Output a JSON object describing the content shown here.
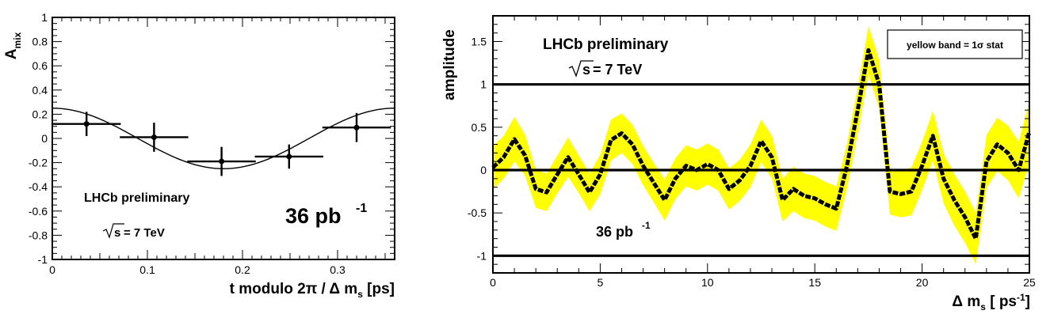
{
  "chart_data": [
    {
      "type": "scatter",
      "title": "",
      "xlabel": "t modulo 2π / Δ m_s [ps]",
      "ylabel": "A_mix",
      "xlim": [
        0,
        0.36
      ],
      "ylim": [
        -1,
        1
      ],
      "x_ticks": [
        0,
        0.1,
        0.2,
        0.3
      ],
      "x_tick_labels": [
        "0",
        "0.1",
        "0.2",
        "0.3"
      ],
      "y_ticks": [
        -1,
        -0.8,
        -0.6,
        -0.4,
        -0.2,
        0,
        0.2,
        0.4,
        0.6,
        0.8,
        1
      ],
      "y_tick_labels": [
        "-1",
        "-0.8",
        "-0.6",
        "-0.4",
        "-0.2",
        "0",
        "0.2",
        "0.4",
        "0.6",
        "0.8",
        "1"
      ],
      "series": [
        {
          "name": "data",
          "points": [
            {
              "x": 0.036,
              "y": 0.12,
              "xerr": 0.036,
              "yerr": 0.1
            },
            {
              "x": 0.107,
              "y": 0.01,
              "xerr": 0.036,
              "yerr": 0.12
            },
            {
              "x": 0.178,
              "y": -0.19,
              "xerr": 0.036,
              "yerr": 0.12
            },
            {
              "x": 0.249,
              "y": -0.15,
              "xerr": 0.036,
              "yerr": 0.1
            },
            {
              "x": 0.32,
              "y": 0.09,
              "xerr": 0.036,
              "yerr": 0.12
            }
          ]
        },
        {
          "name": "fit",
          "kind": "cosine",
          "amplitude": 0.25,
          "period": 0.36
        }
      ],
      "annotations": {
        "label": "LHCb preliminary",
        "energy_sqrt": "s",
        "energy_rest": " = 7 TeV",
        "lumi_main": "36 pb",
        "lumi_sup": "-1"
      }
    },
    {
      "type": "line",
      "title": "",
      "xlabel": "Δ m_s [ ps^-1 ]",
      "ylabel": "amplitude",
      "xlim": [
        0,
        25
      ],
      "ylim": [
        -1.2,
        1.8
      ],
      "x_ticks": [
        0,
        5,
        10,
        15,
        20,
        25
      ],
      "x_tick_labels": [
        "0",
        "5",
        "10",
        "15",
        "20",
        "25"
      ],
      "y_ticks": [
        -1,
        -0.5,
        0,
        0.5,
        1,
        1.5
      ],
      "y_tick_labels": [
        "-1",
        "-0.5",
        "0",
        "0.5",
        "1",
        "1.5"
      ],
      "hlines": [
        -1,
        0,
        1
      ],
      "series": [
        {
          "name": "amplitude",
          "x": [
            0,
            0.5,
            1,
            1.5,
            2,
            2.5,
            3,
            3.5,
            4,
            4.5,
            5,
            5.5,
            6,
            6.5,
            7,
            7.5,
            8,
            8.5,
            9,
            9.5,
            10,
            10.5,
            11,
            11.5,
            12,
            12.5,
            13,
            13.5,
            14,
            14.5,
            15,
            15.5,
            16,
            16.5,
            17,
            17.5,
            18,
            18.5,
            19,
            19.5,
            20,
            20.5,
            21,
            21.5,
            22,
            22.5,
            23,
            23.5,
            24,
            24.5,
            25
          ],
          "y": [
            0.03,
            0.15,
            0.36,
            0.17,
            -0.22,
            -0.26,
            -0.05,
            0.15,
            -0.05,
            -0.26,
            -0.05,
            0.35,
            0.43,
            0.3,
            0.05,
            -0.15,
            -0.35,
            -0.1,
            0.05,
            0.0,
            0.07,
            0.0,
            -0.22,
            -0.12,
            0.05,
            0.34,
            0.15,
            -0.35,
            -0.22,
            -0.3,
            -0.33,
            -0.4,
            -0.45,
            0.05,
            0.7,
            1.4,
            1.0,
            -0.25,
            -0.28,
            -0.25,
            0.05,
            0.4,
            -0.1,
            -0.35,
            -0.55,
            -0.8,
            0.1,
            0.3,
            0.2,
            0.0,
            0.45
          ],
          "band_halfwidth": [
            0.25,
            0.25,
            0.26,
            0.24,
            0.22,
            0.22,
            0.22,
            0.23,
            0.22,
            0.22,
            0.23,
            0.24,
            0.23,
            0.23,
            0.23,
            0.23,
            0.24,
            0.24,
            0.24,
            0.24,
            0.24,
            0.24,
            0.24,
            0.24,
            0.25,
            0.25,
            0.25,
            0.25,
            0.26,
            0.26,
            0.26,
            0.26,
            0.26,
            0.26,
            0.27,
            0.28,
            0.28,
            0.27,
            0.27,
            0.28,
            0.28,
            0.29,
            0.29,
            0.3,
            0.3,
            0.3,
            0.31,
            0.31,
            0.32,
            0.33,
            0.36
          ]
        }
      ],
      "annotations": {
        "label": "LHCb preliminary",
        "energy_sqrt": "s",
        "energy_rest": " = 7 TeV",
        "lumi_main": "36 pb",
        "lumi_sup": "-1",
        "legend_text": "yellow band = 1σ stat"
      },
      "colors": {
        "band": "#ffff00",
        "line": "#000000"
      }
    }
  ]
}
